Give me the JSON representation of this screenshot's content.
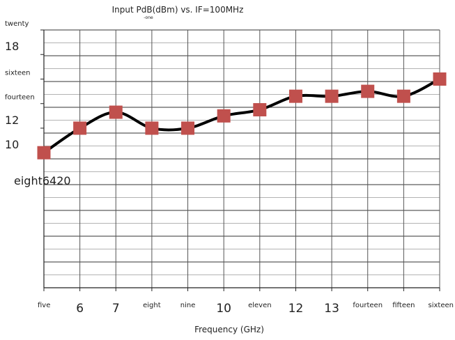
{
  "chart_data": {
    "type": "line",
    "title": "Input PdB(dBm) vs. IF=100MHz",
    "title_subscript": "-one",
    "xlabel": "Frequency (GHz)",
    "ylabel": "",
    "x": [
      5,
      6,
      7,
      8,
      9,
      10,
      11,
      12,
      13,
      14,
      15,
      16
    ],
    "xlim": [
      5,
      16
    ],
    "x_tick_labels": [
      "five",
      "6",
      "7",
      "eight",
      "nine",
      "10",
      "eleven",
      "12",
      "13",
      "fourteen",
      "fifteen",
      "sixteen"
    ],
    "ylim": [
      -1,
      20
    ],
    "y_ticks": [
      20,
      18,
      16,
      14,
      12,
      10
    ],
    "y_tick_labels": [
      "twenty",
      "18",
      "sixteen",
      "fourteen",
      "12",
      "10"
    ],
    "y_tick_overlap_label": "eight6420",
    "grid": true,
    "series": [
      {
        "values": [
          10,
          12,
          13.3,
          12,
          12,
          13,
          13.5,
          14.6,
          14.6,
          15,
          14.6,
          16
        ],
        "color": "#000000",
        "marker": "square",
        "marker_color": "#c0504d"
      }
    ]
  }
}
